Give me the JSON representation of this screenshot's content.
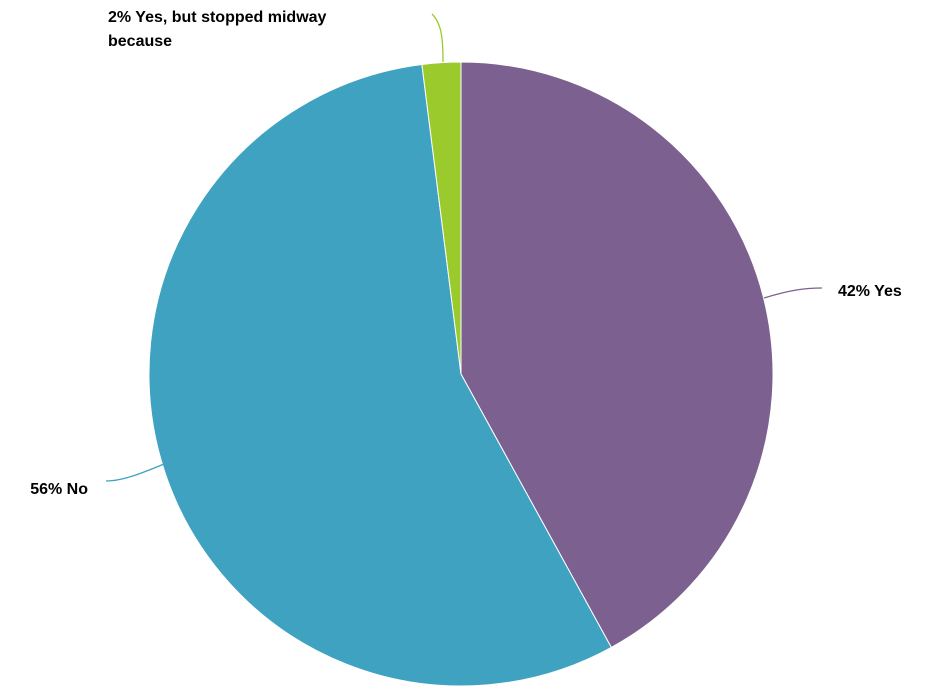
{
  "chart_data": {
    "type": "pie",
    "title": "",
    "slices": [
      {
        "label_lines": [
          "42% Yes"
        ],
        "value": 42,
        "color": "#7B6090"
      },
      {
        "label_lines": [
          "56% No"
        ],
        "value": 56,
        "color": "#3FA2C1"
      },
      {
        "label_lines": [
          "2% Yes, but stopped midway",
          "because"
        ],
        "value": 2,
        "color": "#9ACA2C"
      }
    ],
    "start": "12 o'clock",
    "direction": "clockwise",
    "legend": "none"
  }
}
